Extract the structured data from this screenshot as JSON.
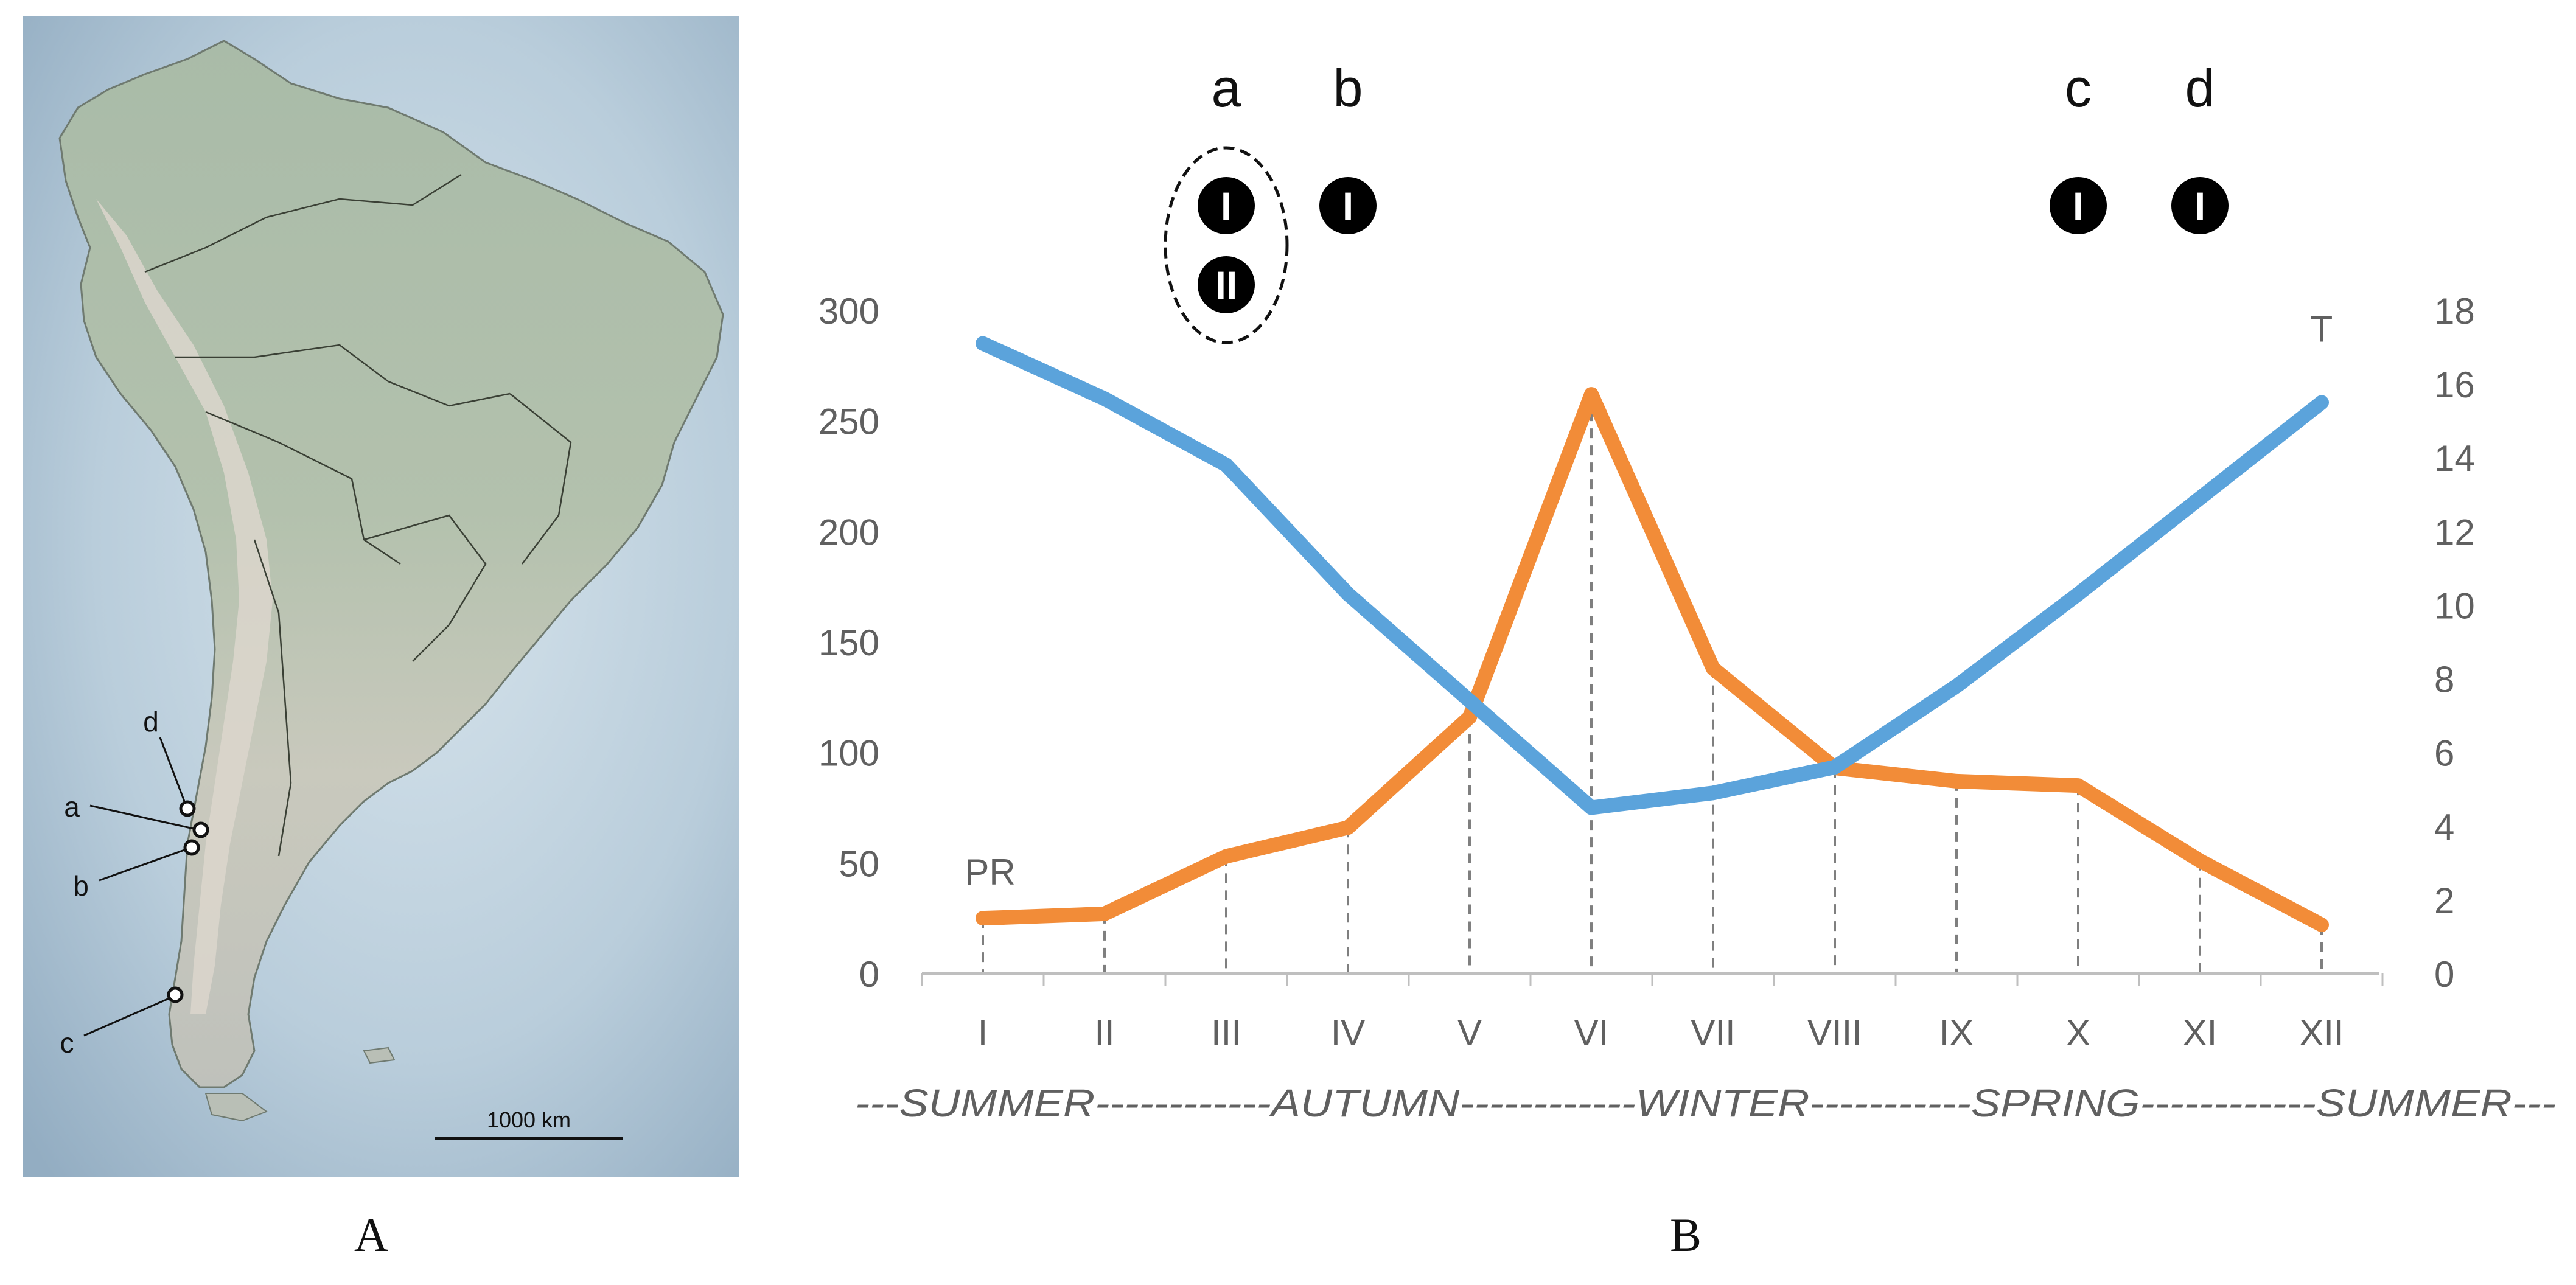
{
  "panels": {
    "a_label": "A",
    "b_label": "B"
  },
  "map": {
    "site_labels": [
      "d",
      "a",
      "b",
      "c"
    ],
    "scale_label": "1000 km",
    "colors": {
      "ocean": "#c9d8e2",
      "ocean_deep": "#9fb6c8",
      "land": "#c8cfbd",
      "forest": "#a8bba6",
      "andes": "#d8d4cc",
      "border": "#3a4035"
    }
  },
  "chart_data": {
    "type": "line",
    "categories": [
      "I",
      "II",
      "III",
      "IV",
      "V",
      "VI",
      "VII",
      "VIII",
      "IX",
      "X",
      "XI",
      "XII"
    ],
    "series": [
      {
        "name": "PR",
        "axis": "left",
        "color": "#f28c38",
        "values": [
          25,
          27,
          53,
          66,
          116,
          262,
          138,
          93,
          87,
          85,
          51,
          22
        ]
      },
      {
        "name": "T",
        "axis": "right",
        "color": "#5ba3db",
        "values": [
          17.1,
          15.6,
          13.8,
          10.3,
          7.4,
          4.5,
          4.9,
          5.6,
          7.8,
          10.3,
          12.9,
          15.5
        ]
      }
    ],
    "left_axis": {
      "ylim": [
        0,
        300
      ],
      "ticks": [
        "0",
        "50",
        "100",
        "150",
        "200",
        "250",
        "300"
      ]
    },
    "right_axis": {
      "ylim": [
        0,
        18
      ],
      "ticks": [
        "0",
        "2",
        "4",
        "6",
        "8",
        "10",
        "12",
        "14",
        "16",
        "18"
      ]
    },
    "series_labels": {
      "left": "PR",
      "right": "T"
    },
    "seasons": [
      "---SUMMER------------",
      "AUTUMN------------",
      "WINTER-----------",
      "SPRING-----------",
      "-SUMMER---"
    ],
    "season_centers": [
      2.6,
      4.1,
      6.0,
      7.9,
      10.4
    ],
    "sites": [
      {
        "letter": "a",
        "category": "III",
        "markers": [
          "I",
          "II"
        ],
        "grouped": true
      },
      {
        "letter": "b",
        "category": "IV",
        "markers": [
          "I"
        ],
        "grouped": false
      },
      {
        "letter": "c",
        "category": "X",
        "markers": [
          "I"
        ],
        "grouped": false
      },
      {
        "letter": "d",
        "category": "XI",
        "markers": [
          "I"
        ],
        "grouped": false
      }
    ]
  }
}
